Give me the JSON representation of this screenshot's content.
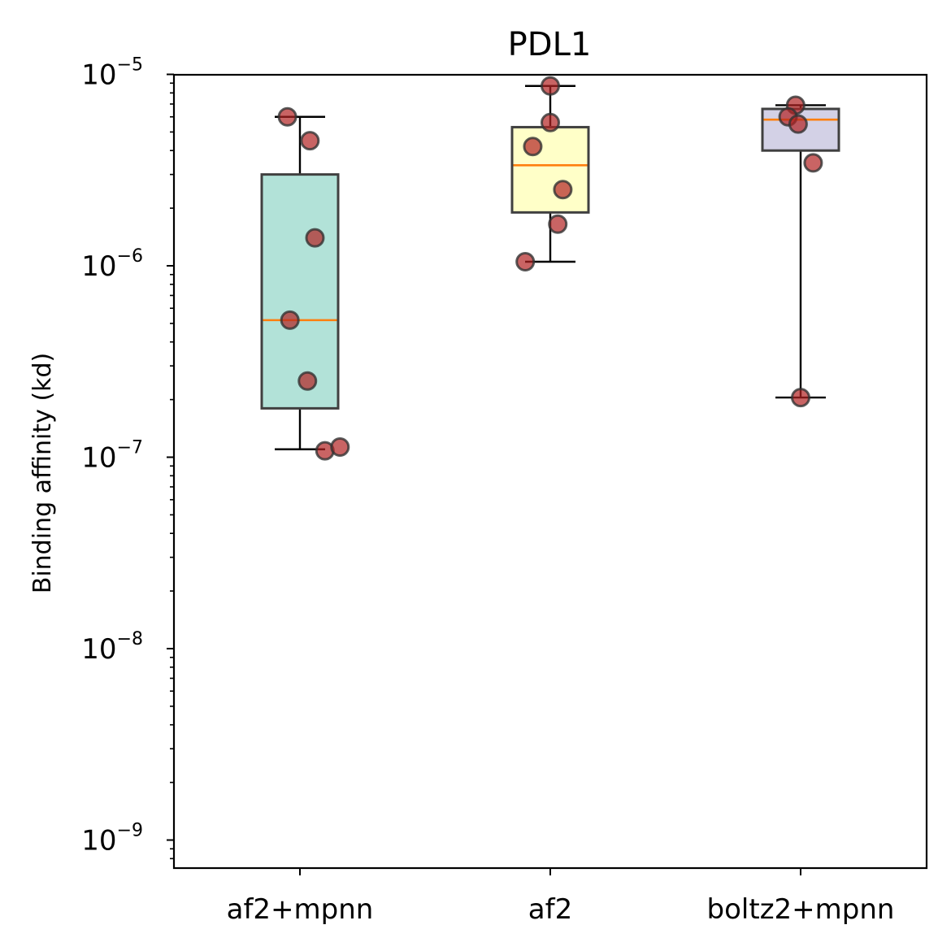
{
  "chart_data": {
    "type": "box",
    "title": "PDL1",
    "xlabel": "",
    "ylabel": "Binding affinity (kd)",
    "yscale": "log",
    "ylim": [
      7e-10,
      1e-05
    ],
    "yticks": [
      {
        "value": 1e-09,
        "base": "10",
        "exp": "−9"
      },
      {
        "value": 1e-08,
        "base": "10",
        "exp": "−8"
      },
      {
        "value": 1e-07,
        "base": "10",
        "exp": "−7"
      },
      {
        "value": 1e-06,
        "base": "10",
        "exp": "−6"
      },
      {
        "value": 1e-05,
        "base": "10",
        "exp": "−5"
      }
    ],
    "grid": false,
    "legend": "none",
    "categories": [
      "af2+mpnn",
      "af2",
      "boltz2+mpnn"
    ],
    "boxes": [
      {
        "name": "af2+mpnn",
        "color": "#b2e2d8",
        "whisker_low": 1.1e-07,
        "q1": 1.8e-07,
        "median": 5.2e-07,
        "q3": 3e-06,
        "whisker_high": 6e-06,
        "points": [
          6e-06,
          4.5e-06,
          1.4e-06,
          5.2e-07,
          2.5e-07,
          1.08e-07,
          1.13e-07
        ],
        "jitter": [
          -0.05,
          0.04,
          0.06,
          -0.04,
          0.03,
          0.1,
          0.16
        ]
      },
      {
        "name": "af2",
        "color": "#ffffc8",
        "whisker_low": 1.05e-06,
        "q1": 1.9e-06,
        "median": 3.35e-06,
        "q3": 5.3e-06,
        "whisker_high": 8.7e-06,
        "points": [
          8.7e-06,
          5.6e-06,
          4.2e-06,
          2.5e-06,
          1.65e-06,
          1.05e-06
        ],
        "jitter": [
          0.0,
          0.0,
          -0.07,
          0.05,
          0.03,
          -0.1
        ]
      },
      {
        "name": "boltz2+mpnn",
        "color": "#d3d1e6",
        "whisker_low": 2.05e-07,
        "q1": 4e-06,
        "median": 5.8e-06,
        "q3": 6.6e-06,
        "whisker_high": 6.9e-06,
        "points": [
          6.9e-06,
          6e-06,
          5.5e-06,
          3.45e-06,
          2.05e-07
        ],
        "jitter": [
          -0.02,
          -0.05,
          -0.01,
          0.05,
          0.0
        ]
      }
    ],
    "median_color": "#ff7f0e",
    "point_color": "#b22222"
  }
}
